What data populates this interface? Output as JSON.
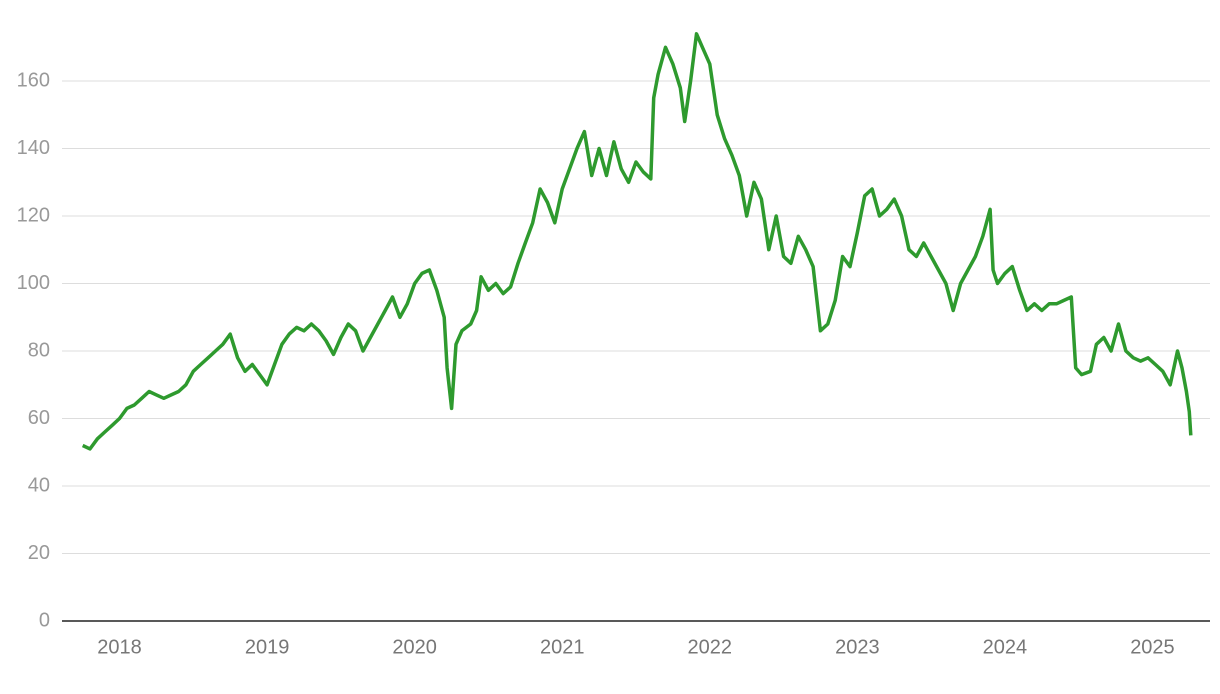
{
  "chart_data": {
    "type": "line",
    "x": [
      2017.75,
      2017.8,
      2017.85,
      2017.9,
      2017.95,
      2018.0,
      2018.05,
      2018.1,
      2018.15,
      2018.2,
      2018.25,
      2018.3,
      2018.35,
      2018.4,
      2018.45,
      2018.5,
      2018.55,
      2018.6,
      2018.65,
      2018.7,
      2018.75,
      2018.8,
      2018.85,
      2018.9,
      2018.95,
      2019.0,
      2019.05,
      2019.1,
      2019.15,
      2019.2,
      2019.25,
      2019.3,
      2019.35,
      2019.4,
      2019.45,
      2019.5,
      2019.55,
      2019.6,
      2019.65,
      2019.7,
      2019.75,
      2019.8,
      2019.85,
      2019.9,
      2019.95,
      2020.0,
      2020.05,
      2020.1,
      2020.15,
      2020.2,
      2020.22,
      2020.25,
      2020.28,
      2020.32,
      2020.38,
      2020.42,
      2020.45,
      2020.5,
      2020.55,
      2020.6,
      2020.65,
      2020.7,
      2020.75,
      2020.8,
      2020.85,
      2020.9,
      2020.95,
      2021.0,
      2021.05,
      2021.1,
      2021.15,
      2021.2,
      2021.25,
      2021.3,
      2021.35,
      2021.4,
      2021.45,
      2021.5,
      2021.55,
      2021.6,
      2021.62,
      2021.65,
      2021.7,
      2021.75,
      2021.8,
      2021.83,
      2021.87,
      2021.91,
      2021.95,
      2022.0,
      2022.05,
      2022.1,
      2022.15,
      2022.2,
      2022.25,
      2022.3,
      2022.35,
      2022.4,
      2022.45,
      2022.5,
      2022.55,
      2022.6,
      2022.65,
      2022.7,
      2022.75,
      2022.8,
      2022.85,
      2022.9,
      2022.95,
      2023.0,
      2023.05,
      2023.1,
      2023.15,
      2023.2,
      2023.25,
      2023.3,
      2023.35,
      2023.4,
      2023.45,
      2023.5,
      2023.55,
      2023.6,
      2023.65,
      2023.7,
      2023.75,
      2023.8,
      2023.85,
      2023.9,
      2023.92,
      2023.95,
      2024.0,
      2024.05,
      2024.1,
      2024.15,
      2024.2,
      2024.25,
      2024.3,
      2024.35,
      2024.4,
      2024.45,
      2024.48,
      2024.52,
      2024.58,
      2024.62,
      2024.67,
      2024.72,
      2024.77,
      2024.82,
      2024.87,
      2024.92,
      2024.97,
      2025.02,
      2025.07,
      2025.12,
      2025.15,
      2025.17,
      2025.2,
      2025.23,
      2025.25,
      2025.26
    ],
    "values": [
      52,
      51,
      54,
      56,
      58,
      60,
      63,
      64,
      66,
      68,
      67,
      66,
      67,
      68,
      70,
      74,
      76,
      78,
      80,
      82,
      85,
      78,
      74,
      76,
      73,
      70,
      76,
      82,
      85,
      87,
      86,
      88,
      86,
      83,
      79,
      84,
      88,
      86,
      80,
      84,
      88,
      92,
      96,
      90,
      94,
      100,
      103,
      104,
      98,
      90,
      75,
      63,
      82,
      86,
      88,
      92,
      102,
      98,
      100,
      97,
      99,
      106,
      112,
      118,
      128,
      124,
      118,
      128,
      134,
      140,
      145,
      132,
      140,
      132,
      142,
      134,
      130,
      136,
      133,
      131,
      155,
      162,
      170,
      165,
      158,
      148,
      160,
      174,
      170,
      165,
      150,
      143,
      138,
      132,
      120,
      130,
      125,
      110,
      120,
      108,
      106,
      114,
      110,
      105,
      86,
      88,
      95,
      108,
      105,
      115,
      126,
      128,
      120,
      122,
      125,
      120,
      110,
      108,
      112,
      108,
      104,
      100,
      92,
      100,
      104,
      108,
      114,
      122,
      104,
      100,
      103,
      105,
      98,
      92,
      94,
      92,
      94,
      94,
      95,
      96,
      75,
      73,
      74,
      82,
      84,
      80,
      88,
      80,
      78,
      77,
      78,
      76,
      74,
      70,
      76,
      80,
      75,
      68,
      62,
      55
    ],
    "color": "#2e9a2e",
    "xlim": [
      2017.61,
      2025.39
    ],
    "xticks": [
      2018,
      2019,
      2020,
      2021,
      2022,
      2023,
      2024,
      2025
    ],
    "ylim": [
      0,
      180
    ],
    "yticks": [
      0,
      20,
      40,
      60,
      80,
      100,
      120,
      140,
      160
    ],
    "grid": true
  }
}
